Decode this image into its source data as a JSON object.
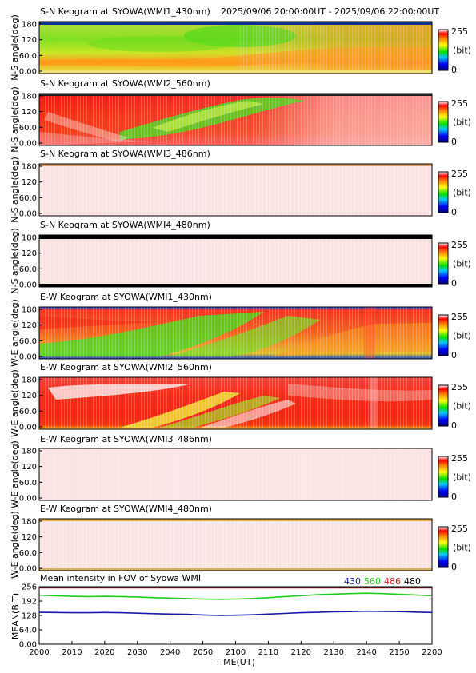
{
  "header": {
    "time_range": "2025/09/06 20:00:00UT - 2025/09/06 22:00:00UT"
  },
  "colorbar": {
    "max_label": "255",
    "unit_label": "(bit)",
    "min_label": "0"
  },
  "keograms": [
    {
      "title": "S-N Keogram at SYOWA(WMI1_430nm)",
      "ylabel": "N-S angle(deg)",
      "yticks": [
        "180",
        "120",
        "60.0",
        "0.00"
      ],
      "dominant": "green/yellow with orange band"
    },
    {
      "title": "S-N Keogram at SYOWA(WMI2_560nm)",
      "ylabel": "N-S angle(deg)",
      "yticks": [
        "180",
        "120",
        "60.0",
        "0.00"
      ],
      "dominant": "red/white with green arc"
    },
    {
      "title": "S-N Keogram at SYOWA(WMI3_486nm)",
      "ylabel": "N-S angle(deg)",
      "yticks": [
        "180",
        "120",
        "60.0",
        "0.00"
      ],
      "dominant": "pale pink"
    },
    {
      "title": "S-N Keogram at SYOWA(WMI4_480nm)",
      "ylabel": "N-S angle(deg)",
      "yticks": [
        "180",
        "120",
        "60.0",
        "0.00"
      ],
      "dominant": "pale pink"
    },
    {
      "title": "E-W Keogram at SYOWA(WMI1_430nm)",
      "ylabel": "W-E angle(deg)",
      "yticks": [
        "180",
        "120",
        "60.0",
        "0.00"
      ],
      "dominant": "red/orange with green diagonal"
    },
    {
      "title": "E-W Keogram at SYOWA(WMI2_560nm)",
      "ylabel": "W-E angle(deg)",
      "yticks": [
        "180",
        "120",
        "60.0",
        "0.00"
      ],
      "dominant": "red with white/yellow streaks"
    },
    {
      "title": "E-W Keogram at SYOWA(WMI3_486nm)",
      "ylabel": "W-E angle(deg)",
      "yticks": [
        "180",
        "120",
        "60.0",
        "0.00"
      ],
      "dominant": "pale pink"
    },
    {
      "title": "E-W Keogram at SYOWA(WMI4_480nm)",
      "ylabel": "W-E angle(deg)",
      "yticks": [
        "180",
        "120",
        "60.0",
        "0.00"
      ],
      "dominant": "pale pink"
    }
  ],
  "chart_data": {
    "type": "line",
    "title": "Mean intensity in FOV of Syowa WMI",
    "xlabel": "TIME(UT)",
    "ylabel": "MEAN(BIT)",
    "x_ticks": [
      "2000",
      "2010",
      "2020",
      "2030",
      "2040",
      "2050",
      "2100",
      "2110",
      "2120",
      "2130",
      "2140",
      "2150",
      "2200"
    ],
    "y_ticks": [
      "256",
      "192",
      "128",
      "64.0",
      "0.00"
    ],
    "ylim": [
      0,
      256
    ],
    "x_minutes": [
      0,
      5,
      10,
      15,
      20,
      25,
      30,
      35,
      40,
      45,
      50,
      55,
      60,
      65,
      70,
      75,
      80,
      85,
      90,
      95,
      100,
      105,
      110,
      115,
      120
    ],
    "series": [
      {
        "name": "430",
        "color": "#1a1aa8",
        "values": [
          142,
          141,
          140,
          140,
          141,
          140,
          138,
          136,
          134,
          133,
          130,
          128,
          129,
          131,
          134,
          137,
          140,
          142,
          144,
          145,
          147,
          146,
          145,
          143,
          141
        ]
      },
      {
        "name": "560",
        "color": "#22cc22",
        "values": [
          218,
          215,
          213,
          212,
          213,
          212,
          210,
          207,
          205,
          203,
          201,
          200,
          201,
          203,
          207,
          212,
          216,
          220,
          223,
          225,
          227,
          225,
          222,
          219,
          216
        ]
      },
      {
        "name": "486",
        "color": "#d02020",
        "values": [
          251,
          251,
          251,
          251,
          251,
          251,
          251,
          251,
          251,
          251,
          251,
          251,
          251,
          251,
          251,
          251,
          251,
          251,
          251,
          251,
          251,
          251,
          251,
          251,
          251
        ]
      },
      {
        "name": "480",
        "color": "#000000",
        "values": [
          253,
          253,
          253,
          253,
          253,
          253,
          253,
          253,
          253,
          253,
          253,
          253,
          253,
          253,
          253,
          253,
          253,
          253,
          253,
          253,
          253,
          253,
          253,
          253,
          253
        ]
      }
    ]
  }
}
